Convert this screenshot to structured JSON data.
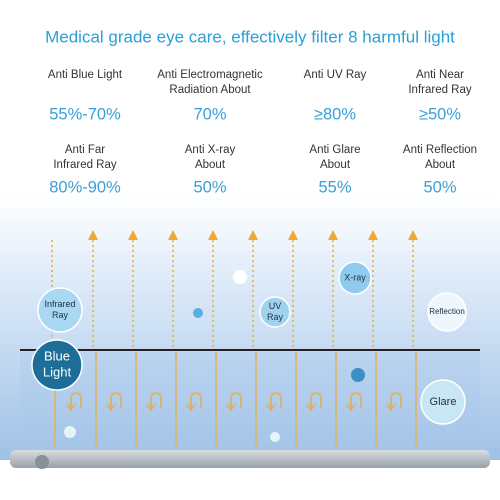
{
  "title": "Medical grade eye care, effectively filter 8 harmful light",
  "items": [
    {
      "label": [
        "Anti Blue Light"
      ],
      "value": "55%-70%"
    },
    {
      "label": [
        "Anti Electromagnetic",
        "Radiation About"
      ],
      "value": "70%"
    },
    {
      "label": [
        "Anti UV Ray"
      ],
      "value": "≥80%"
    },
    {
      "label": [
        "Anti Near",
        "Infrared Ray"
      ],
      "value": "≥50%"
    },
    {
      "label": [
        "Anti Far",
        "Infrared Ray"
      ],
      "value": "80%-90%"
    },
    {
      "label": [
        "Anti X-ray",
        "About"
      ],
      "value": "50%"
    },
    {
      "label": [
        "Anti Glare",
        "About"
      ],
      "value": "55%"
    },
    {
      "label": [
        "Anti Reflection",
        "About"
      ],
      "value": "50%"
    }
  ],
  "bubbles": [
    {
      "label": [
        "Infrared",
        "Ray"
      ]
    },
    {
      "label": [
        "UV",
        "Ray"
      ]
    },
    {
      "label": [
        "X-ray"
      ]
    },
    {
      "label": [
        "Reflection"
      ]
    },
    {
      "label": [
        "Blue",
        "Light"
      ]
    },
    {
      "label": [
        "Glare"
      ]
    }
  ]
}
